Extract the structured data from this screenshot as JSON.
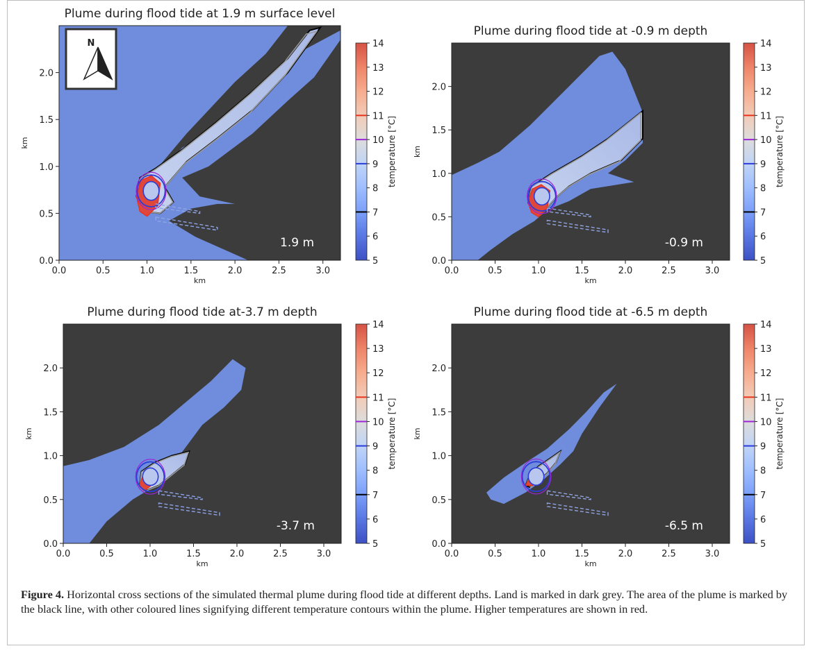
{
  "colors": {
    "land": "#3c3c3c",
    "water": "#6f8ddc",
    "outline": "#000000",
    "contour_blue": "#2b3cd8",
    "contour_purple": "#9a26d6",
    "contour_red": "#e8341e",
    "contour_grey": "#9a9a9a"
  },
  "colorbar": {
    "label": "temperature [°C]",
    "ticks": [
      "5",
      "6",
      "7",
      "8",
      "9",
      "10",
      "11",
      "12",
      "13",
      "14"
    ],
    "stops": [
      {
        "t": 5,
        "color": "#3d50c3"
      },
      {
        "t": 6,
        "color": "#5977e3"
      },
      {
        "t": 7,
        "color": "#7b9ff9"
      },
      {
        "t": 8,
        "color": "#9ebeff"
      },
      {
        "t": 9,
        "color": "#c0d4f5"
      },
      {
        "t": 10,
        "color": "#dddcdc"
      },
      {
        "t": 11,
        "color": "#f2cbb7"
      },
      {
        "t": 12,
        "color": "#f7ac8e"
      },
      {
        "t": 13,
        "color": "#ee8468"
      },
      {
        "t": 14,
        "color": "#d65244"
      },
      {
        "t": 14.01,
        "color": "#b40426"
      }
    ],
    "contour_lines": [
      {
        "t": 7,
        "color": "#000000"
      },
      {
        "t": 9,
        "color": "#2b3cd8"
      },
      {
        "t": 10,
        "color": "#9a26d6"
      },
      {
        "t": 11,
        "color": "#e8341e"
      }
    ]
  },
  "chart_data": [
    {
      "type": "heatmap",
      "title": "Plume during flood tide at 1.9 m surface level",
      "xlabel": "km",
      "ylabel": "km",
      "xlim": [
        0,
        3.2
      ],
      "ylim": [
        0,
        2.5
      ],
      "xticks": [
        "0.0",
        "0.5",
        "1.0",
        "1.5",
        "2.0",
        "2.5",
        "3.0"
      ],
      "yticks": [
        "0.0",
        "0.5",
        "1.0",
        "1.5",
        "2.0"
      ],
      "annotation": "1.9 m",
      "north_arrow_label": "N",
      "background": "water",
      "land_polygon": [
        [
          1.5,
          2.5
        ],
        [
          3.2,
          2.5
        ],
        [
          3.2,
          0
        ],
        [
          2.15,
          0
        ],
        [
          1.55,
          0.25
        ],
        [
          1.25,
          0.42
        ],
        [
          1.5,
          0.55
        ],
        [
          1.8,
          0.6
        ],
        [
          2.0,
          0.6
        ],
        [
          1.6,
          0.68
        ],
        [
          1.4,
          0.88
        ],
        [
          1.7,
          1.0
        ],
        [
          2.2,
          1.35
        ],
        [
          2.6,
          1.7
        ],
        [
          2.9,
          1.95
        ],
        [
          3.2,
          2.35
        ],
        [
          3.2,
          2.45
        ],
        [
          2.7,
          2.2
        ],
        [
          2.1,
          1.6
        ],
        [
          1.8,
          1.4
        ],
        [
          1.4,
          1.2
        ],
        [
          1.15,
          0.95
        ],
        [
          1.0,
          0.85
        ],
        [
          1.45,
          1.35
        ],
        [
          2.0,
          1.9
        ],
        [
          2.35,
          2.2
        ],
        [
          2.6,
          2.5
        ]
      ],
      "plume": [
        [
          0.88,
          0.68
        ],
        [
          0.92,
          0.88
        ],
        [
          1.1,
          0.98
        ],
        [
          1.4,
          1.18
        ],
        [
          1.8,
          1.48
        ],
        [
          2.2,
          1.8
        ],
        [
          2.6,
          2.15
        ],
        [
          2.85,
          2.45
        ],
        [
          2.97,
          2.48
        ],
        [
          2.6,
          2.0
        ],
        [
          2.2,
          1.6
        ],
        [
          1.8,
          1.3
        ],
        [
          1.45,
          1.05
        ],
        [
          1.2,
          0.78
        ],
        [
          1.3,
          0.62
        ],
        [
          1.15,
          0.5
        ],
        [
          0.95,
          0.52
        ]
      ],
      "warm_core": [
        [
          0.88,
          0.68
        ],
        [
          0.93,
          0.85
        ],
        [
          1.05,
          0.9
        ],
        [
          1.15,
          0.82
        ],
        [
          1.12,
          0.58
        ],
        [
          1.0,
          0.47
        ],
        [
          0.92,
          0.52
        ]
      ],
      "labels_on_map": []
    },
    {
      "type": "heatmap",
      "title": "Plume during flood tide at -0.9 m depth",
      "xlabel": "km",
      "ylabel": "km",
      "xlim": [
        0,
        3.2
      ],
      "ylim": [
        0,
        2.5
      ],
      "xticks": [
        "0.0",
        "0.5",
        "1.0",
        "1.5",
        "2.0",
        "2.5",
        "3.0"
      ],
      "yticks": [
        "0.0",
        "0.5",
        "1.0",
        "1.5",
        "2.0"
      ],
      "annotation": "-0.9 m",
      "background": "land",
      "water_polygon": [
        [
          0,
          0.98
        ],
        [
          0.3,
          1.12
        ],
        [
          0.55,
          1.25
        ],
        [
          0.9,
          1.55
        ],
        [
          1.2,
          1.85
        ],
        [
          1.5,
          2.15
        ],
        [
          1.7,
          2.35
        ],
        [
          1.85,
          2.4
        ],
        [
          2.0,
          2.2
        ],
        [
          2.1,
          1.95
        ],
        [
          2.2,
          1.7
        ],
        [
          2.2,
          1.35
        ],
        [
          2.0,
          1.15
        ],
        [
          1.8,
          1.0
        ],
        [
          2.1,
          0.9
        ],
        [
          1.6,
          0.82
        ],
        [
          1.35,
          0.68
        ],
        [
          1.1,
          0.58
        ],
        [
          0.95,
          0.45
        ],
        [
          0.7,
          0.3
        ],
        [
          0.45,
          0.12
        ],
        [
          0.3,
          0
        ],
        [
          0,
          0
        ]
      ],
      "plume": [
        [
          0.88,
          0.66
        ],
        [
          0.92,
          0.85
        ],
        [
          1.15,
          1.0
        ],
        [
          1.5,
          1.2
        ],
        [
          1.8,
          1.4
        ],
        [
          2.2,
          1.72
        ],
        [
          2.2,
          1.4
        ],
        [
          1.95,
          1.15
        ],
        [
          1.6,
          1.0
        ],
        [
          1.35,
          0.85
        ],
        [
          1.2,
          0.72
        ],
        [
          1.05,
          0.55
        ],
        [
          0.95,
          0.55
        ]
      ],
      "warm_core": [
        [
          0.88,
          0.66
        ],
        [
          0.93,
          0.82
        ],
        [
          1.03,
          0.87
        ],
        [
          1.13,
          0.8
        ],
        [
          1.1,
          0.6
        ],
        [
          1.0,
          0.5
        ],
        [
          0.92,
          0.55
        ]
      ],
      "labels_on_map": []
    },
    {
      "type": "heatmap",
      "title": "Plume during flood tide at-3.7 m depth",
      "xlabel": "km",
      "ylabel": "km",
      "xlim": [
        0,
        3.2
      ],
      "ylim": [
        0,
        2.5
      ],
      "xticks": [
        "0.0",
        "0.5",
        "1.0",
        "1.5",
        "2.0",
        "2.5",
        "3.0"
      ],
      "yticks": [
        "0.0",
        "0.5",
        "1.0",
        "1.5",
        "2.0"
      ],
      "annotation": "-3.7 m",
      "background": "land",
      "water_polygon": [
        [
          0,
          0.88
        ],
        [
          0.3,
          0.95
        ],
        [
          0.7,
          1.1
        ],
        [
          1.1,
          1.35
        ],
        [
          1.4,
          1.6
        ],
        [
          1.7,
          1.85
        ],
        [
          1.95,
          2.1
        ],
        [
          2.1,
          2.0
        ],
        [
          2.05,
          1.75
        ],
        [
          1.85,
          1.55
        ],
        [
          1.6,
          1.35
        ],
        [
          1.45,
          1.15
        ],
        [
          1.3,
          0.95
        ],
        [
          1.15,
          0.75
        ],
        [
          1.0,
          0.62
        ],
        [
          0.8,
          0.5
        ],
        [
          0.5,
          0.25
        ],
        [
          0.3,
          0
        ],
        [
          0,
          0
        ]
      ],
      "plume": [
        [
          0.88,
          0.66
        ],
        [
          0.9,
          0.82
        ],
        [
          1.05,
          0.92
        ],
        [
          1.25,
          1.0
        ],
        [
          1.45,
          1.05
        ],
        [
          1.4,
          0.9
        ],
        [
          1.25,
          0.78
        ],
        [
          1.1,
          0.66
        ],
        [
          0.95,
          0.6
        ]
      ],
      "warm_core": [
        [
          0.88,
          0.66
        ],
        [
          0.92,
          0.78
        ],
        [
          1.0,
          0.82
        ],
        [
          1.05,
          0.75
        ],
        [
          1.0,
          0.65
        ],
        [
          0.93,
          0.6
        ]
      ],
      "labels_on_map": []
    },
    {
      "type": "heatmap",
      "title": "Plume during flood tide at -6.5 m depth",
      "xlabel": "km",
      "ylabel": "km",
      "xlim": [
        0,
        3.2
      ],
      "ylim": [
        0,
        2.5
      ],
      "xticks": [
        "0.0",
        "0.5",
        "1.0",
        "1.5",
        "2.0",
        "2.5",
        "3.0"
      ],
      "yticks": [
        "0.0",
        "0.5",
        "1.0",
        "1.5",
        "2.0"
      ],
      "annotation": "-6.5 m",
      "background": "land",
      "water_polygon": [
        [
          0.4,
          0.58
        ],
        [
          0.6,
          0.75
        ],
        [
          0.85,
          0.92
        ],
        [
          1.1,
          1.08
        ],
        [
          1.35,
          1.3
        ],
        [
          1.55,
          1.5
        ],
        [
          1.75,
          1.72
        ],
        [
          1.9,
          1.82
        ],
        [
          1.7,
          1.55
        ],
        [
          1.5,
          1.25
        ],
        [
          1.4,
          1.05
        ],
        [
          1.25,
          0.9
        ],
        [
          1.05,
          0.72
        ],
        [
          0.85,
          0.58
        ],
        [
          0.6,
          0.45
        ],
        [
          0.45,
          0.5
        ]
      ],
      "plume": [
        [
          0.85,
          0.66
        ],
        [
          0.9,
          0.78
        ],
        [
          1.0,
          0.88
        ],
        [
          1.15,
          0.98
        ],
        [
          1.25,
          1.05
        ],
        [
          1.2,
          0.92
        ],
        [
          1.1,
          0.8
        ],
        [
          0.98,
          0.7
        ],
        [
          0.9,
          0.64
        ]
      ],
      "warm_core": [
        [
          0.85,
          0.66
        ],
        [
          0.9,
          0.74
        ],
        [
          0.98,
          0.78
        ],
        [
          1.0,
          0.72
        ],
        [
          0.93,
          0.66
        ]
      ],
      "labels_on_map": []
    }
  ],
  "caption": {
    "label": "Figure 4.",
    "text": " Horizontal cross sections of the simulated thermal plume during flood tide at different depths. Land is marked in dark grey. The area of the plume is marked by the black line, with other coloured lines signifying different temperature contours within the plume. Higher temperatures are shown in red."
  }
}
